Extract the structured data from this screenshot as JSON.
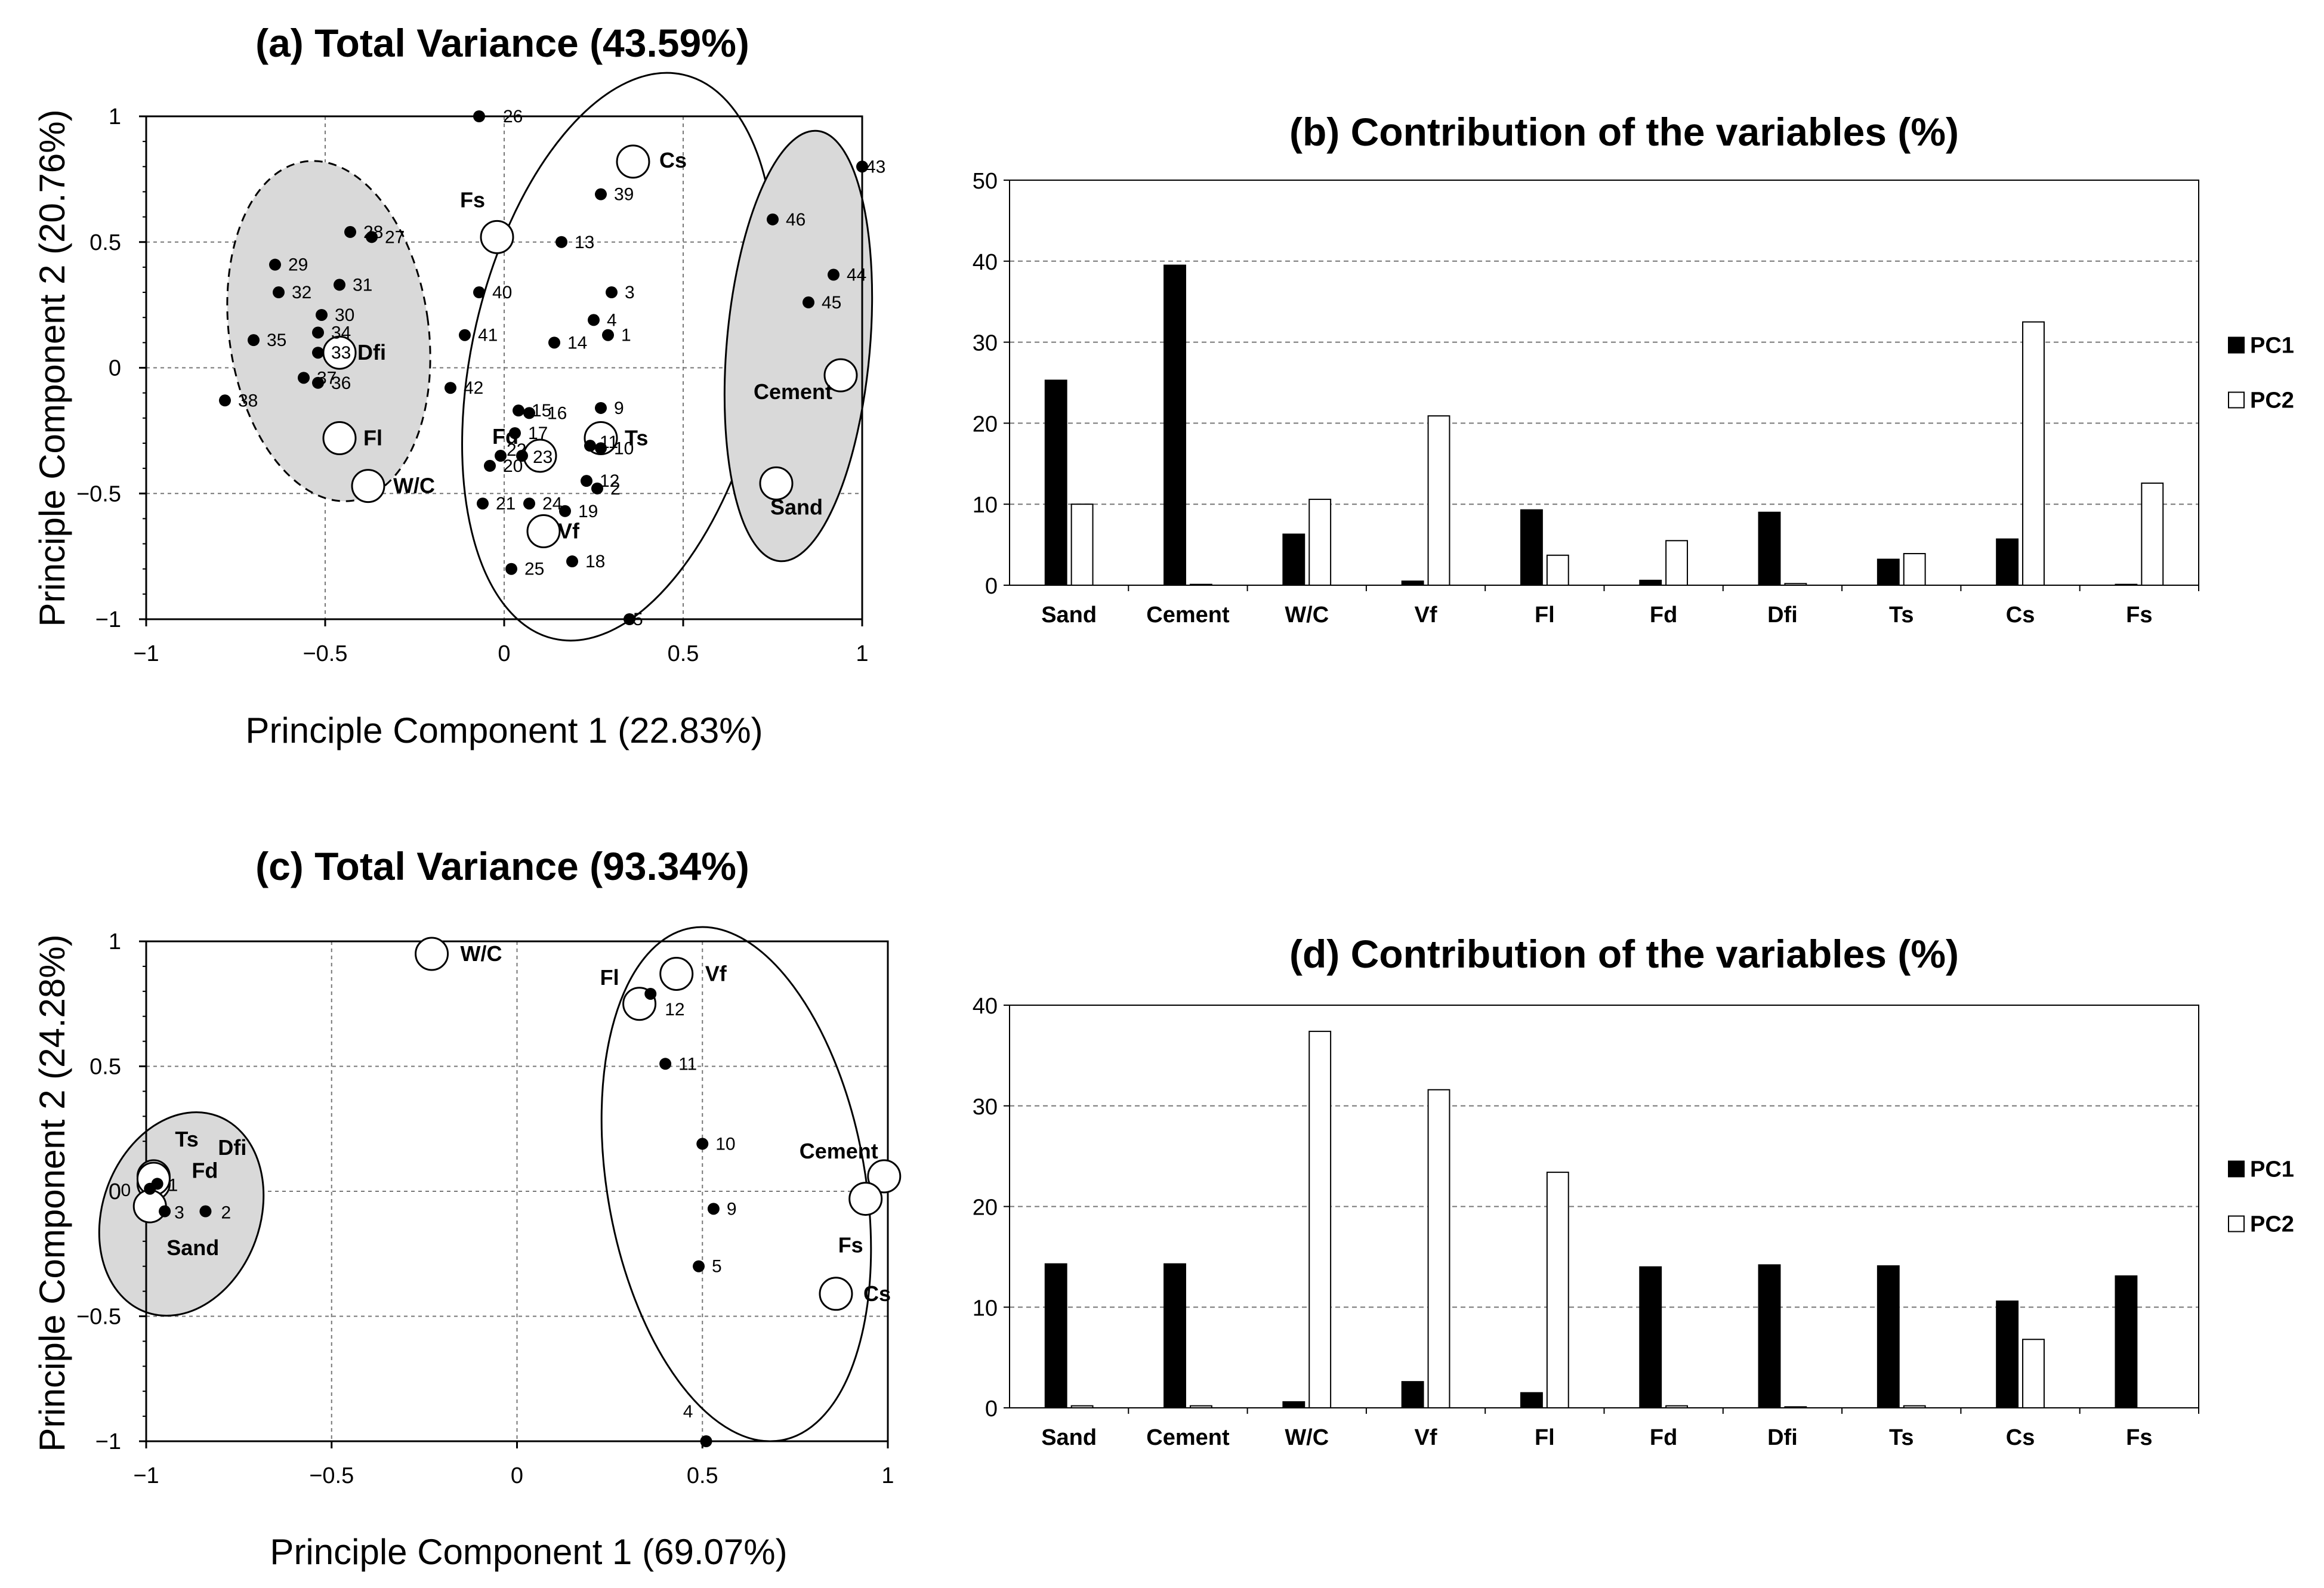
{
  "chart_data": [
    {
      "panel": "a",
      "type": "scatter",
      "title": "(a) Total Variance (43.59%)",
      "xlabel": "Principle Component 1 (22.83%)",
      "ylabel": "Principle Component 2 (20.76%)",
      "xlim": [
        -1,
        1
      ],
      "ylim": [
        -1,
        1
      ],
      "xticks": [
        -1,
        -0.5,
        0,
        0.5,
        1
      ],
      "yticks": [
        -1,
        -0.5,
        0,
        0.5,
        1
      ],
      "xtick_labels": [
        "−1",
        "−0.5",
        "0",
        "0.5",
        "1"
      ],
      "ytick_labels": [
        "−1",
        "−0.5",
        "0",
        "0.5",
        "1"
      ],
      "grid": true,
      "samples": [
        {
          "id": "1",
          "x": 0.29,
          "y": 0.13
        },
        {
          "id": "2",
          "x": 0.26,
          "y": -0.48
        },
        {
          "id": "3",
          "x": 0.3,
          "y": 0.3
        },
        {
          "id": "4",
          "x": 0.25,
          "y": 0.19
        },
        {
          "id": "5",
          "x": 0.35,
          "y": -1.0
        },
        {
          "id": "9",
          "x": 0.27,
          "y": -0.16
        },
        {
          "id": "10",
          "x": 0.27,
          "y": -0.32
        },
        {
          "id": "11",
          "x": 0.24,
          "y": -0.31
        },
        {
          "id": "12",
          "x": 0.23,
          "y": -0.45
        },
        {
          "id": "13",
          "x": 0.16,
          "y": 0.5
        },
        {
          "id": "14",
          "x": 0.14,
          "y": 0.1
        },
        {
          "id": "15",
          "x": 0.04,
          "y": -0.17
        },
        {
          "id": "16",
          "x": 0.07,
          "y": -0.18
        },
        {
          "id": "17",
          "x": 0.03,
          "y": -0.26
        },
        {
          "id": "18",
          "x": 0.19,
          "y": -0.77
        },
        {
          "id": "19",
          "x": 0.17,
          "y": -0.57
        },
        {
          "id": "20",
          "x": -0.04,
          "y": -0.39
        },
        {
          "id": "21",
          "x": -0.06,
          "y": -0.54
        },
        {
          "id": "22",
          "x": -0.01,
          "y": -0.35
        },
        {
          "id": "23",
          "x": 0.05,
          "y": -0.35
        },
        {
          "id": "24",
          "x": 0.07,
          "y": -0.54
        },
        {
          "id": "25",
          "x": 0.02,
          "y": -0.8
        },
        {
          "id": "26",
          "x": -0.07,
          "y": 1.0
        },
        {
          "id": "27",
          "x": -0.37,
          "y": 0.52
        },
        {
          "id": "28",
          "x": -0.43,
          "y": 0.54
        },
        {
          "id": "29",
          "x": -0.64,
          "y": 0.41
        },
        {
          "id": "30",
          "x": -0.51,
          "y": 0.21
        },
        {
          "id": "31",
          "x": -0.46,
          "y": 0.33
        },
        {
          "id": "32",
          "x": -0.63,
          "y": 0.3
        },
        {
          "id": "33",
          "x": -0.52,
          "y": 0.06
        },
        {
          "id": "34",
          "x": -0.52,
          "y": 0.14
        },
        {
          "id": "35",
          "x": -0.7,
          "y": 0.11
        },
        {
          "id": "36",
          "x": -0.52,
          "y": -0.06
        },
        {
          "id": "37",
          "x": -0.56,
          "y": -0.04
        },
        {
          "id": "38",
          "x": -0.78,
          "y": -0.13
        },
        {
          "id": "39",
          "x": 0.27,
          "y": 0.69
        },
        {
          "id": "40",
          "x": -0.07,
          "y": 0.3
        },
        {
          "id": "41",
          "x": -0.11,
          "y": 0.13
        },
        {
          "id": "42",
          "x": -0.15,
          "y": -0.08
        },
        {
          "id": "43",
          "x": 1.0,
          "y": 0.8
        },
        {
          "id": "44",
          "x": 0.92,
          "y": 0.37
        },
        {
          "id": "45",
          "x": 0.85,
          "y": 0.26
        },
        {
          "id": "46",
          "x": 0.75,
          "y": 0.59
        }
      ],
      "variables": [
        {
          "name": "Cs",
          "x": 0.36,
          "y": 0.82
        },
        {
          "name": "Fs",
          "x": -0.02,
          "y": 0.52
        },
        {
          "name": "Dfi",
          "x": -0.46,
          "y": 0.06
        },
        {
          "name": "Fl",
          "x": -0.46,
          "y": -0.28
        },
        {
          "name": "W/C",
          "x": -0.38,
          "y": -0.47
        },
        {
          "name": "Fd",
          "x": 0.1,
          "y": -0.35
        },
        {
          "name": "Ts",
          "x": 0.27,
          "y": -0.28
        },
        {
          "name": "Vf",
          "x": 0.11,
          "y": -0.65
        },
        {
          "name": "Cement",
          "x": 0.94,
          "y": -0.03
        },
        {
          "name": "Sand",
          "x": 0.76,
          "y": -0.46
        }
      ]
    },
    {
      "panel": "b",
      "type": "bar",
      "title": "(b) Contribution of the variables (%)",
      "categories": [
        "Sand",
        "Cement",
        "W/C",
        "Vf",
        "Fl",
        "Fd",
        "Dfi",
        "Ts",
        "Cs",
        "Fs"
      ],
      "series": [
        {
          "name": "PC1",
          "values": [
            25.3,
            39.5,
            6.3,
            0.5,
            9.3,
            0.6,
            9.0,
            3.2,
            5.7,
            0.1
          ]
        },
        {
          "name": "PC2",
          "values": [
            10.0,
            0.1,
            10.6,
            20.9,
            3.7,
            5.5,
            0.2,
            3.9,
            32.5,
            12.6
          ]
        }
      ],
      "ylim": [
        0,
        50
      ],
      "yticks": [
        0,
        10,
        20,
        30,
        40,
        50
      ],
      "ytick_labels": [
        "0",
        "10",
        "20",
        "30",
        "40",
        "50"
      ],
      "legend": "right"
    },
    {
      "panel": "c",
      "type": "scatter",
      "title": "(c) Total Variance (93.34%)",
      "xlabel": "Principle Component 1 (69.07%)",
      "ylabel": "Principle Component 2 (24.28%)",
      "xlim": [
        -1,
        1
      ],
      "ylim": [
        -1,
        1
      ],
      "xticks": [
        -1,
        -0.5,
        0,
        0.5,
        1
      ],
      "yticks": [
        -1,
        -0.5,
        0,
        0.5,
        1
      ],
      "xtick_labels": [
        "−1",
        "−0.5",
        "0",
        "0.5",
        "1"
      ],
      "ytick_labels": [
        "−1",
        "−0.5",
        "0",
        "0.5",
        "1"
      ],
      "grid": true,
      "samples": [
        {
          "id": "0",
          "x": -0.99,
          "y": 0.01
        },
        {
          "id": "1",
          "x": -0.97,
          "y": 0.03
        },
        {
          "id": "2",
          "x": -0.84,
          "y": -0.08
        },
        {
          "id": "3",
          "x": -0.95,
          "y": -0.08
        },
        {
          "id": "4",
          "x": 0.51,
          "y": -1.0
        },
        {
          "id": "5",
          "x": 0.49,
          "y": -0.3
        },
        {
          "id": "9",
          "x": 0.53,
          "y": -0.07
        },
        {
          "id": "10",
          "x": 0.5,
          "y": 0.19
        },
        {
          "id": "11",
          "x": 0.4,
          "y": 0.51
        },
        {
          "id": "12",
          "x": 0.36,
          "y": 0.79
        }
      ],
      "variables": [
        {
          "name": "W/C",
          "x": -0.23,
          "y": 0.95
        },
        {
          "name": "Fl",
          "x": 0.33,
          "y": 0.75
        },
        {
          "name": "Vf",
          "x": 0.43,
          "y": 0.87
        },
        {
          "name": "Cement",
          "x": 0.99,
          "y": 0.06
        },
        {
          "name": "Fs",
          "x": 0.94,
          "y": -0.03
        },
        {
          "name": "Cs",
          "x": 0.86,
          "y": -0.41
        },
        {
          "name": "Ts",
          "x": -0.98,
          "y": 0.06
        },
        {
          "name": "Fd",
          "x": -0.98,
          "y": 0.03
        },
        {
          "name": "Dfi",
          "x": -0.98,
          "y": 0.05
        },
        {
          "name": "Sand",
          "x": -0.99,
          "y": -0.06
        }
      ]
    },
    {
      "panel": "d",
      "type": "bar",
      "title": "(d) Contribution of the variables (%)",
      "categories": [
        "Sand",
        "Cement",
        "W/C",
        "Vf",
        "Fl",
        "Fd",
        "Dfi",
        "Ts",
        "Cs",
        "Fs"
      ],
      "series": [
        {
          "name": "PC1",
          "values": [
            14.3,
            14.3,
            0.6,
            2.6,
            1.5,
            14.0,
            14.2,
            14.1,
            10.6,
            13.1
          ]
        },
        {
          "name": "PC2",
          "values": [
            0.2,
            0.2,
            37.4,
            31.6,
            23.4,
            0.2,
            0.1,
            0.2,
            6.8,
            0.0
          ]
        }
      ],
      "ylim": [
        0,
        40
      ],
      "yticks": [
        0,
        10,
        20,
        30,
        40
      ],
      "ytick_labels": [
        "0",
        "10",
        "20",
        "30",
        "40"
      ],
      "legend": "right"
    }
  ]
}
